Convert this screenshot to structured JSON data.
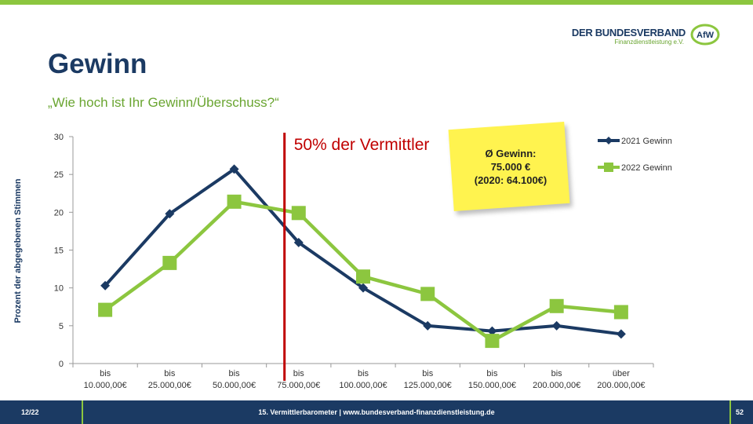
{
  "header": {
    "logo_title": "DER BUNDESVERBAND",
    "logo_subtitle": "Finanzdienstleistung e.V.",
    "logo_mark": "AfW",
    "title": "Gewinn",
    "subtitle": "„Wie hoch ist Ihr Gewinn/Überschuss?“"
  },
  "note": {
    "line1": "Ø Gewinn:",
    "line2": "75.000 €",
    "line3": "(2020: 64.100€)"
  },
  "chart_data": {
    "type": "line",
    "ylabel": "Prozent der abgegebenen Stimmen",
    "xlabel": "",
    "ylim": [
      0,
      30
    ],
    "yticks": [
      0,
      5,
      10,
      15,
      20,
      25,
      30
    ],
    "categories": [
      [
        "bis",
        "10.000,00€"
      ],
      [
        "bis",
        "25.000,00€"
      ],
      [
        "bis",
        "50.000,00€"
      ],
      [
        "bis",
        "75.000,00€"
      ],
      [
        "bis",
        "100.000,00€"
      ],
      [
        "bis",
        "125.000,00€"
      ],
      [
        "bis",
        "150.000,00€"
      ],
      [
        "bis",
        "200.000,00€"
      ],
      [
        "über",
        "200.000,00€"
      ]
    ],
    "series": [
      {
        "name": "2021 Gewinn",
        "color": "#1b3a63",
        "marker": "diamond",
        "values": [
          10.3,
          19.8,
          25.7,
          16.0,
          10.0,
          5.0,
          4.3,
          5.0,
          3.9
        ]
      },
      {
        "name": "2022 Gewinn",
        "color": "#8cc63f",
        "marker": "square",
        "values": [
          7.1,
          13.3,
          21.4,
          19.9,
          11.5,
          9.2,
          3.0,
          7.6,
          6.8
        ]
      }
    ],
    "annotation": {
      "label": "50% der Vermittler",
      "color": "#c00000",
      "position_between": [
        2,
        3
      ],
      "fraction": 0.28
    },
    "legend_position": "top-right",
    "grid": false
  },
  "footer": {
    "page_count": "12/22",
    "center": "15. Vermittlerbarometer | www.bundesverband-finanzdienstleistung.de",
    "page_number": "52"
  }
}
